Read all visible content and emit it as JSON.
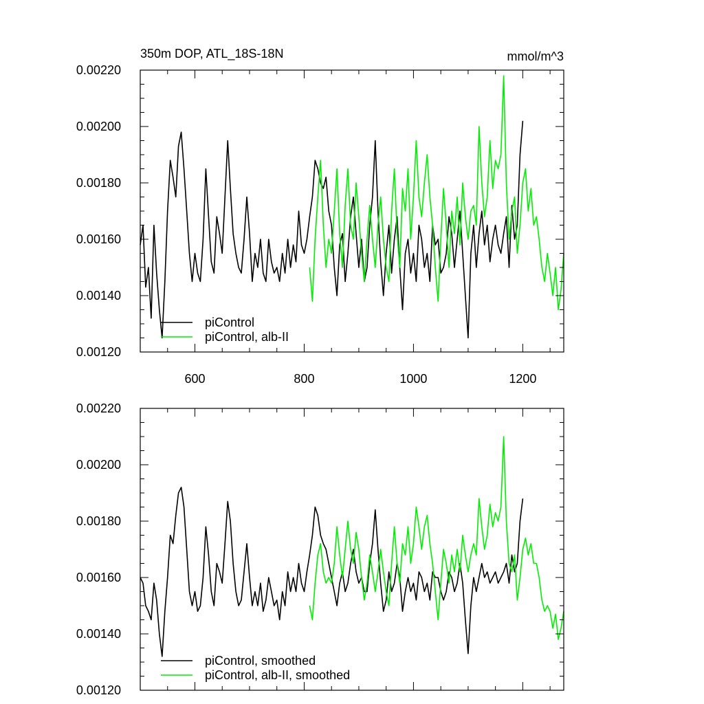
{
  "chart_data": [
    {
      "type": "line",
      "title": "350m DOP, ATL_18S-18N",
      "units": "mmol/m^3",
      "xlim": [
        500,
        1275
      ],
      "ylim": [
        0.0012,
        0.0022
      ],
      "x_ticks": [
        600,
        800,
        1000,
        1200
      ],
      "x_tick_labels": [
        "600",
        "800",
        "1000",
        "1200"
      ],
      "y_ticks": [
        0.0012,
        0.0014,
        0.0016,
        0.0018,
        0.002,
        0.0022
      ],
      "y_tick_labels": [
        "0.00120",
        "0.00140",
        "0.00160",
        "0.00180",
        "0.00200",
        "0.00220"
      ],
      "legend_position": "bottom-left",
      "grid": false,
      "series": [
        {
          "name": "piControl",
          "color": "#000000",
          "x": [
            500,
            505,
            510,
            515,
            520,
            525,
            530,
            535,
            540,
            545,
            550,
            555,
            560,
            565,
            570,
            575,
            580,
            585,
            590,
            595,
            600,
            605,
            610,
            615,
            620,
            625,
            630,
            635,
            640,
            645,
            650,
            655,
            660,
            665,
            670,
            675,
            680,
            685,
            690,
            695,
            700,
            705,
            710,
            715,
            720,
            725,
            730,
            735,
            740,
            745,
            750,
            755,
            760,
            765,
            770,
            775,
            780,
            785,
            790,
            795,
            800,
            805,
            810,
            815,
            820,
            825,
            830,
            835,
            840,
            845,
            850,
            855,
            860,
            865,
            870,
            875,
            880,
            885,
            890,
            895,
            900,
            905,
            910,
            915,
            920,
            925,
            930,
            935,
            940,
            945,
            950,
            955,
            960,
            965,
            970,
            975,
            980,
            985,
            990,
            995,
            1000,
            1005,
            1010,
            1015,
            1020,
            1025,
            1030,
            1035,
            1040,
            1045,
            1050,
            1055,
            1060,
            1065,
            1070,
            1075,
            1080,
            1085,
            1090,
            1095,
            1100,
            1105,
            1110,
            1115,
            1120,
            1125,
            1130,
            1135,
            1140,
            1145,
            1150,
            1155,
            1160,
            1165,
            1170,
            1175,
            1180,
            1185,
            1190,
            1195,
            1200
          ],
          "y": [
            0.00158,
            0.00165,
            0.00143,
            0.0015,
            0.00132,
            0.00165,
            0.00148,
            0.00135,
            0.00125,
            0.00145,
            0.0017,
            0.00188,
            0.00182,
            0.00175,
            0.00193,
            0.00198,
            0.00185,
            0.0017,
            0.00155,
            0.00145,
            0.00155,
            0.00148,
            0.00145,
            0.0016,
            0.00185,
            0.00168,
            0.00152,
            0.00148,
            0.00168,
            0.00162,
            0.00155,
            0.00175,
            0.00195,
            0.00178,
            0.00162,
            0.00155,
            0.0015,
            0.00148,
            0.0016,
            0.00175,
            0.00162,
            0.00145,
            0.00155,
            0.0015,
            0.0016,
            0.00148,
            0.00145,
            0.0016,
            0.00152,
            0.00148,
            0.0015,
            0.00145,
            0.00155,
            0.00148,
            0.0016,
            0.0015,
            0.00158,
            0.00152,
            0.0017,
            0.00158,
            0.00155,
            0.0016,
            0.00168,
            0.00175,
            0.00188,
            0.00185,
            0.0018,
            0.00178,
            0.00182,
            0.0017,
            0.00165,
            0.0015,
            0.0014,
            0.00158,
            0.00162,
            0.00145,
            0.00155,
            0.00168,
            0.00175,
            0.00162,
            0.0015,
            0.0016,
            0.00145,
            0.0015,
            0.00165,
            0.00175,
            0.00195,
            0.0017,
            0.00152,
            0.0014,
            0.00155,
            0.00165,
            0.00148,
            0.0016,
            0.00168,
            0.0015,
            0.00135,
            0.00155,
            0.0016,
            0.00148,
            0.00155,
            0.00145,
            0.00165,
            0.0016,
            0.0015,
            0.00155,
            0.00145,
            0.00165,
            0.00158,
            0.0016,
            0.00148,
            0.0015,
            0.00155,
            0.00168,
            0.00162,
            0.0015,
            0.0016,
            0.0017,
            0.00155,
            0.0014,
            0.00125,
            0.00155,
            0.00165,
            0.0015,
            0.00162,
            0.0017,
            0.00158,
            0.00165,
            0.00152,
            0.0016,
            0.00165,
            0.00158,
            0.00155,
            0.00162,
            0.00168,
            0.0015,
            0.00172,
            0.0016,
            0.00165,
            0.0019,
            0.00202
          ]
        },
        {
          "name": "piControl, alb-II",
          "color": "#00ee00",
          "x": [
            810,
            815,
            820,
            825,
            830,
            835,
            840,
            845,
            850,
            855,
            860,
            865,
            870,
            875,
            880,
            885,
            890,
            895,
            900,
            905,
            910,
            915,
            920,
            925,
            930,
            935,
            940,
            945,
            950,
            955,
            960,
            965,
            970,
            975,
            980,
            985,
            990,
            995,
            1000,
            1005,
            1010,
            1015,
            1020,
            1025,
            1030,
            1035,
            1040,
            1045,
            1050,
            1055,
            1060,
            1065,
            1070,
            1075,
            1080,
            1085,
            1090,
            1095,
            1100,
            1105,
            1110,
            1115,
            1120,
            1125,
            1130,
            1135,
            1140,
            1145,
            1150,
            1155,
            1160,
            1165,
            1170,
            1175,
            1180,
            1185,
            1190,
            1195,
            1200,
            1205,
            1210,
            1215,
            1220,
            1225,
            1230,
            1235,
            1240,
            1245,
            1250,
            1255,
            1260,
            1265,
            1270,
            1275
          ],
          "y": [
            0.0015,
            0.00138,
            0.0016,
            0.00175,
            0.00188,
            0.00165,
            0.0015,
            0.0016,
            0.00155,
            0.0017,
            0.00185,
            0.00162,
            0.0015,
            0.00172,
            0.00185,
            0.00165,
            0.0016,
            0.0018,
            0.00168,
            0.00155,
            0.00145,
            0.0016,
            0.00172,
            0.0016,
            0.0015,
            0.00165,
            0.00175,
            0.0016,
            0.0015,
            0.00145,
            0.0017,
            0.00185,
            0.00162,
            0.0015,
            0.00178,
            0.0017,
            0.00185,
            0.0016,
            0.00175,
            0.00195,
            0.00175,
            0.00168,
            0.0018,
            0.0019,
            0.00175,
            0.00165,
            0.0015,
            0.00138,
            0.0016,
            0.00178,
            0.00165,
            0.0015,
            0.0017,
            0.00162,
            0.00175,
            0.00158,
            0.0018,
            0.00168,
            0.0016,
            0.0017,
            0.00172,
            0.00165,
            0.002,
            0.0018,
            0.00168,
            0.00175,
            0.00195,
            0.00178,
            0.00188,
            0.00185,
            0.0019,
            0.00218,
            0.0018,
            0.0016,
            0.0017,
            0.00175,
            0.00155,
            0.00165,
            0.0018,
            0.00185,
            0.0017,
            0.00178,
            0.00165,
            0.00168,
            0.0016,
            0.0015,
            0.00145,
            0.00155,
            0.00148,
            0.0014,
            0.0015,
            0.00135,
            0.00142,
            0.00155
          ]
        }
      ]
    },
    {
      "type": "line",
      "xlim": [
        500,
        1275
      ],
      "ylim": [
        0.0012,
        0.0022
      ],
      "x_ticks": [
        600,
        800,
        1000,
        1200
      ],
      "y_ticks": [
        0.0012,
        0.0014,
        0.0016,
        0.0018,
        0.002,
        0.0022
      ],
      "y_tick_labels": [
        "0.00120",
        "0.00140",
        "0.00160",
        "0.00180",
        "0.00200",
        "0.00220"
      ],
      "legend_position": "bottom-left",
      "grid": false,
      "series": [
        {
          "name": "piControl, smoothed",
          "color": "#000000",
          "x": [
            500,
            505,
            510,
            515,
            520,
            525,
            530,
            535,
            540,
            545,
            550,
            555,
            560,
            565,
            570,
            575,
            580,
            585,
            590,
            595,
            600,
            605,
            610,
            615,
            620,
            625,
            630,
            635,
            640,
            645,
            650,
            655,
            660,
            665,
            670,
            675,
            680,
            685,
            690,
            695,
            700,
            705,
            710,
            715,
            720,
            725,
            730,
            735,
            740,
            745,
            750,
            755,
            760,
            765,
            770,
            775,
            780,
            785,
            790,
            795,
            800,
            805,
            810,
            815,
            820,
            825,
            830,
            835,
            840,
            845,
            850,
            855,
            860,
            865,
            870,
            875,
            880,
            885,
            890,
            895,
            900,
            905,
            910,
            915,
            920,
            925,
            930,
            935,
            940,
            945,
            950,
            955,
            960,
            965,
            970,
            975,
            980,
            985,
            990,
            995,
            1000,
            1005,
            1010,
            1015,
            1020,
            1025,
            1030,
            1035,
            1040,
            1045,
            1050,
            1055,
            1060,
            1065,
            1070,
            1075,
            1080,
            1085,
            1090,
            1095,
            1100,
            1105,
            1110,
            1115,
            1120,
            1125,
            1130,
            1135,
            1140,
            1145,
            1150,
            1155,
            1160,
            1165,
            1170,
            1175,
            1180,
            1185,
            1190,
            1195,
            1200
          ],
          "y": [
            0.0016,
            0.00158,
            0.0015,
            0.00148,
            0.00145,
            0.00158,
            0.00152,
            0.0014,
            0.00132,
            0.00148,
            0.0016,
            0.00175,
            0.00172,
            0.00182,
            0.0019,
            0.00192,
            0.00185,
            0.0017,
            0.00155,
            0.0015,
            0.00155,
            0.00148,
            0.0015,
            0.0016,
            0.00178,
            0.00168,
            0.00155,
            0.0015,
            0.00165,
            0.00162,
            0.00158,
            0.00172,
            0.00187,
            0.0018,
            0.00165,
            0.00155,
            0.0015,
            0.00152,
            0.00162,
            0.00172,
            0.0016,
            0.0015,
            0.00155,
            0.0015,
            0.00158,
            0.00148,
            0.00152,
            0.0016,
            0.00155,
            0.0015,
            0.00152,
            0.00145,
            0.00155,
            0.0015,
            0.00162,
            0.00155,
            0.0016,
            0.00155,
            0.00165,
            0.00158,
            0.00155,
            0.00162,
            0.00168,
            0.00175,
            0.00185,
            0.00182,
            0.00175,
            0.00172,
            0.0017,
            0.00165,
            0.0016,
            0.00155,
            0.0015,
            0.00158,
            0.00162,
            0.00155,
            0.00158,
            0.00165,
            0.0017,
            0.00162,
            0.00158,
            0.0016,
            0.00155,
            0.00155,
            0.00165,
            0.00172,
            0.00184,
            0.0017,
            0.00158,
            0.00148,
            0.00152,
            0.00162,
            0.00155,
            0.00158,
            0.00165,
            0.0016,
            0.00148,
            0.00155,
            0.0016,
            0.00155,
            0.00158,
            0.00152,
            0.00162,
            0.0016,
            0.00155,
            0.00158,
            0.00152,
            0.00162,
            0.0016,
            0.0016,
            0.00155,
            0.00152,
            0.00155,
            0.00162,
            0.0016,
            0.00155,
            0.00158,
            0.00165,
            0.00158,
            0.00145,
            0.00133,
            0.0015,
            0.0016,
            0.00155,
            0.0016,
            0.00165,
            0.0016,
            0.00162,
            0.00158,
            0.0016,
            0.00162,
            0.00158,
            0.0016,
            0.00162,
            0.00165,
            0.00158,
            0.00168,
            0.00162,
            0.00165,
            0.0018,
            0.00188
          ]
        },
        {
          "name": "piControl, alb-II, smoothed",
          "color": "#00ee00",
          "x": [
            810,
            815,
            820,
            825,
            830,
            835,
            840,
            845,
            850,
            855,
            860,
            865,
            870,
            875,
            880,
            885,
            890,
            895,
            900,
            905,
            910,
            915,
            920,
            925,
            930,
            935,
            940,
            945,
            950,
            955,
            960,
            965,
            970,
            975,
            980,
            985,
            990,
            995,
            1000,
            1005,
            1010,
            1015,
            1020,
            1025,
            1030,
            1035,
            1040,
            1045,
            1050,
            1055,
            1060,
            1065,
            1070,
            1075,
            1080,
            1085,
            1090,
            1095,
            1100,
            1105,
            1110,
            1115,
            1120,
            1125,
            1130,
            1135,
            1140,
            1145,
            1150,
            1155,
            1160,
            1165,
            1170,
            1175,
            1180,
            1185,
            1190,
            1195,
            1200,
            1205,
            1210,
            1215,
            1220,
            1225,
            1230,
            1235,
            1240,
            1245,
            1250,
            1255,
            1260,
            1265,
            1270,
            1275
          ],
          "y": [
            0.0015,
            0.00145,
            0.00158,
            0.00168,
            0.00172,
            0.00162,
            0.00158,
            0.0016,
            0.00158,
            0.00165,
            0.00178,
            0.00168,
            0.0016,
            0.0017,
            0.0018,
            0.0017,
            0.00165,
            0.00176,
            0.0017,
            0.0016,
            0.00152,
            0.00158,
            0.00168,
            0.00162,
            0.00155,
            0.00162,
            0.0017,
            0.00162,
            0.00155,
            0.0015,
            0.00165,
            0.00178,
            0.00165,
            0.00158,
            0.00172,
            0.00168,
            0.00178,
            0.00165,
            0.00172,
            0.00185,
            0.00178,
            0.0017,
            0.00178,
            0.00182,
            0.00172,
            0.00165,
            0.00155,
            0.00145,
            0.00158,
            0.0017,
            0.00165,
            0.00158,
            0.00168,
            0.00162,
            0.0017,
            0.00162,
            0.00175,
            0.00168,
            0.00162,
            0.00168,
            0.00172,
            0.00168,
            0.00188,
            0.00178,
            0.0017,
            0.00175,
            0.00186,
            0.00178,
            0.00183,
            0.0018,
            0.00185,
            0.0021,
            0.0018,
            0.00165,
            0.00162,
            0.00168,
            0.00152,
            0.0016,
            0.0017,
            0.00174,
            0.00168,
            0.00172,
            0.00165,
            0.00165,
            0.0016,
            0.00152,
            0.00148,
            0.0015,
            0.00148,
            0.00142,
            0.00147,
            0.00138,
            0.00142,
            0.00148
          ]
        }
      ]
    }
  ]
}
